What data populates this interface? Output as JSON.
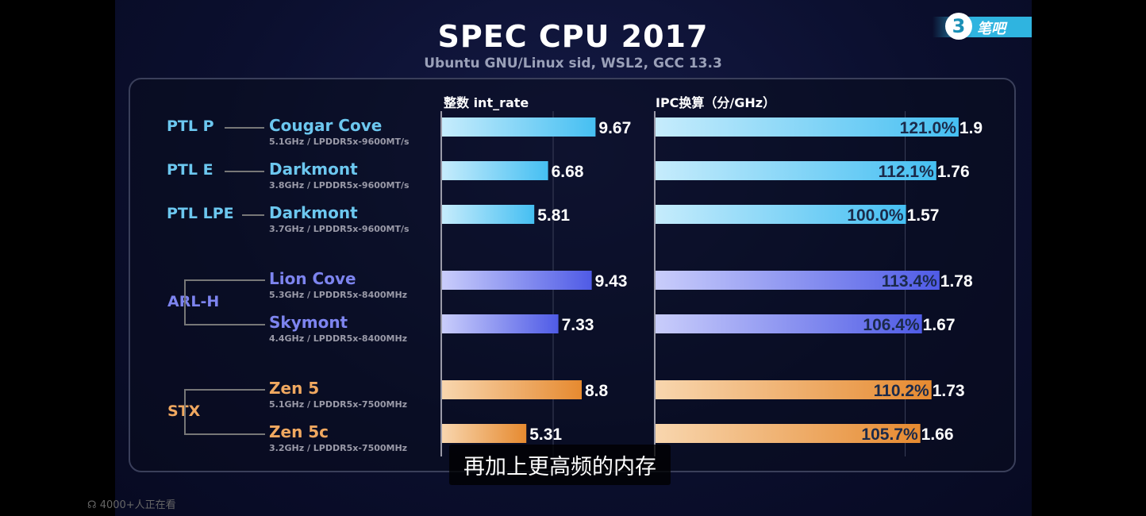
{
  "overlay": {
    "subtitle_caption": "再加上更高频的内存",
    "viewers": "4000+人正在看",
    "viewers_icon": "headphones-icon",
    "logo_text": "笔吧",
    "logo_mark": "3"
  },
  "chart_data": {
    "type": "bar",
    "orientation": "horizontal",
    "title": "SPEC CPU 2017",
    "subtitle": "Ubuntu GNU/Linux sid, WSL2, GCC 13.3",
    "groups": [
      {
        "label": "PTL P",
        "color": "#4fc3f3"
      },
      {
        "label": "PTL E",
        "color": "#4fc3f3"
      },
      {
        "label": "PTL LPE",
        "color": "#4fc3f3"
      },
      {
        "label": "ARL-H",
        "color": "#6d74ef"
      },
      {
        "label": "STX",
        "color": "#eb9a48"
      }
    ],
    "categories": [
      {
        "group": "PTL P",
        "name": "Cougar Cove",
        "spec": "5.1GHz / LPDDR5x-9600MT/s"
      },
      {
        "group": "PTL E",
        "name": "Darkmont",
        "spec": "3.8GHz / LPDDR5x-9600MT/s"
      },
      {
        "group": "PTL LPE",
        "name": "Darkmont",
        "spec": "3.7GHz / LPDDR5x-9600MT/s"
      },
      {
        "group": "ARL-H",
        "name": "Lion Cove",
        "spec": "5.3GHz / LPDDR5x-8400MHz"
      },
      {
        "group": "ARL-H",
        "name": "Skymont",
        "spec": "4.4GHz / LPDDR5x-8400MHz"
      },
      {
        "group": "STX",
        "name": "Zen 5",
        "spec": "5.1GHz / LPDDR5x-7500MHz"
      },
      {
        "group": "STX",
        "name": "Zen 5c",
        "spec": "3.2GHz / LPDDR5x-7500MHz"
      }
    ],
    "series": [
      {
        "name": "整数 int_rate",
        "values": [
          9.67,
          6.68,
          5.81,
          9.43,
          7.33,
          8.8,
          5.31
        ],
        "labels": [
          "9.67",
          "6.68",
          "5.81",
          "9.43",
          "7.33",
          "8.8",
          "5.31"
        ]
      },
      {
        "name": "IPC换算（分/GHz）",
        "values": [
          1.9,
          1.76,
          1.57,
          1.78,
          1.67,
          1.73,
          1.66
        ],
        "labels": [
          "1.9",
          "1.76",
          "1.57",
          "1.78",
          "1.67",
          "1.73",
          "1.66"
        ],
        "relative": [
          "121.0%",
          "112.1%",
          "100.0%",
          "113.4%",
          "106.4%",
          "110.2%",
          "105.7%"
        ],
        "reference_value": 1.57
      }
    ],
    "colors": {
      "PTL": [
        "#c6ecfc",
        "#45bff2"
      ],
      "ARL": [
        "#c9cdfb",
        "#4f5be6"
      ],
      "STX": [
        "#f8d6ae",
        "#e68a30"
      ]
    }
  }
}
